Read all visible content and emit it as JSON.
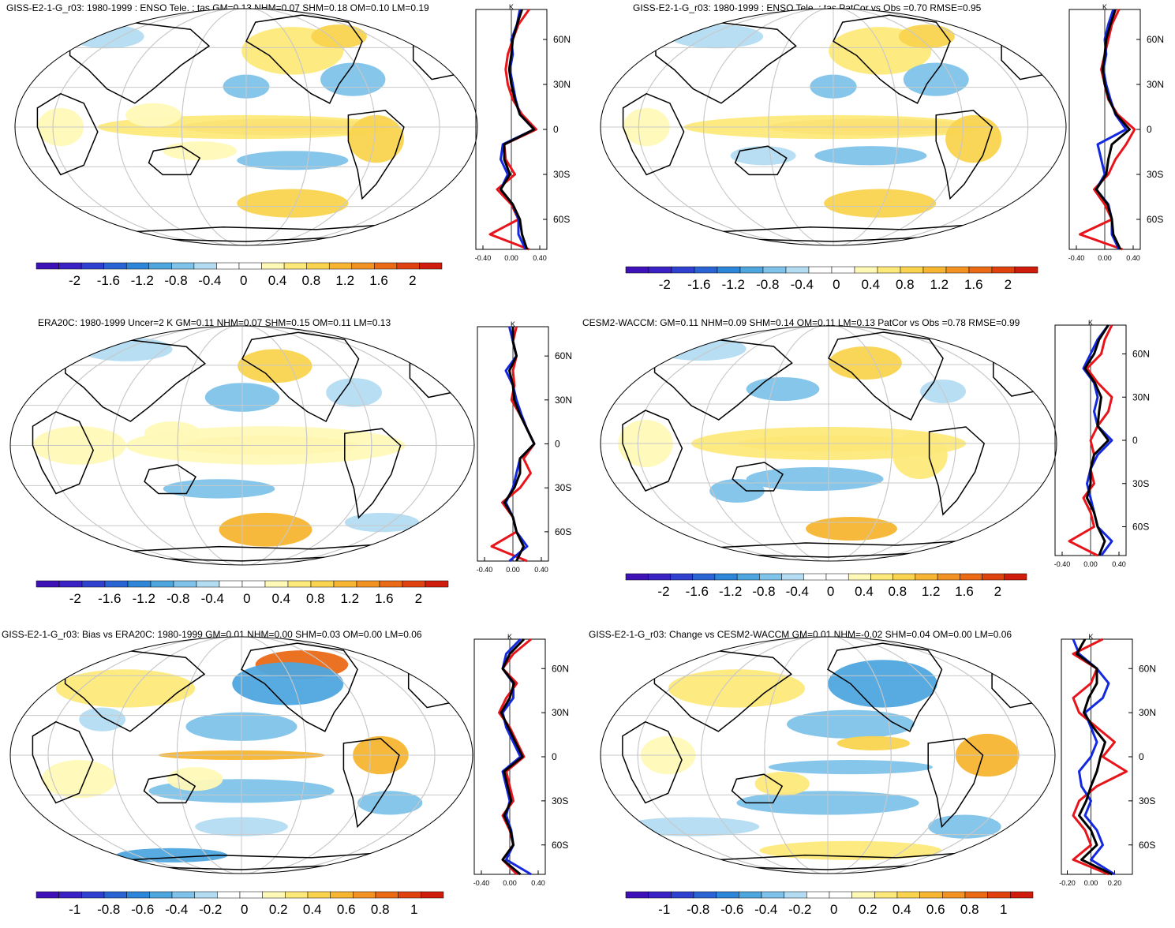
{
  "colors": {
    "model": "#e8141b",
    "obs": "#1428e0",
    "ensemble": "#000000",
    "coast": "#000000",
    "grid": "#c8c8c8",
    "warm_scale": [
      "#fff9b8",
      "#fde97a",
      "#fad44f",
      "#f7b532",
      "#f29222",
      "#ea6a16",
      "#e0420f",
      "#d01c0c"
    ],
    "cool_scale": [
      "#b3dcf2",
      "#7fc3ea",
      "#4ea6df",
      "#2e86d9",
      "#2a64d2",
      "#3040cf",
      "#3a22c4",
      "#3f12b8"
    ]
  },
  "panels": [
    {
      "title": "GISS-E2-1-G_r03: 1980-1999 : ENSO Tele. : tas GM=0.13 NHM=0.07 SHM=0.18 OM=0.10 LM=0.19",
      "profile_unit": "K",
      "lat_labels": [
        "60N",
        "30N",
        "0",
        "30S",
        "60S"
      ],
      "profile_ticks": [
        "-0.40",
        "0.00",
        "0.40"
      ],
      "colorbar_labels": [
        "-2",
        "-1.6",
        "-1.2",
        "-0.8",
        "-0.4",
        "0",
        "0.4",
        "0.8",
        "1.2",
        "1.6",
        "2"
      ]
    },
    {
      "title": "GISS-E2-1-G_r03: 1980-1999 : ENSO Tele. : tas PatCor vs Obs =0.70 RMSE=0.95",
      "profile_unit": "K",
      "lat_labels": [
        "60N",
        "30N",
        "0",
        "30S",
        "60S"
      ],
      "profile_ticks": [
        "-0.40",
        "0.00",
        "0.40"
      ],
      "colorbar_labels": [
        "-2",
        "-1.6",
        "-1.2",
        "-0.8",
        "-0.4",
        "0",
        "0.4",
        "0.8",
        "1.2",
        "1.6",
        "2"
      ]
    },
    {
      "title": "ERA20C: 1980-1999 Uncer=2 K GM=0.11 NHM=0.07 SHM=0.15 OM=0.11 LM=0.13",
      "profile_unit": "K",
      "lat_labels": [
        "60N",
        "30N",
        "0",
        "30S",
        "60S"
      ],
      "profile_ticks": [
        "-0.40",
        "0.00",
        "0.40"
      ],
      "colorbar_labels": [
        "-2",
        "-1.6",
        "-1.2",
        "-0.8",
        "-0.4",
        "0",
        "0.4",
        "0.8",
        "1.2",
        "1.6",
        "2"
      ]
    },
    {
      "title": "CESM2-WACCM: GM=0.11 NHM=0.09 SHM=0.14 OM=0.11 LM=0.13 PatCor vs Obs =0.78 RMSE=0.99",
      "profile_unit": "K",
      "lat_labels": [
        "60N",
        "30N",
        "0",
        "30S",
        "60S"
      ],
      "profile_ticks": [
        "-0.40",
        "0.00",
        "0.40"
      ],
      "colorbar_labels": [
        "-2",
        "-1.6",
        "-1.2",
        "-0.8",
        "-0.4",
        "0",
        "0.4",
        "0.8",
        "1.2",
        "1.6",
        "2"
      ]
    },
    {
      "title": "GISS-E2-1-G_r03: Bias vs ERA20C: 1980-1999 GM=0.01 NHM=0.00 SHM=0.03 OM=0.00 LM=0.06",
      "profile_unit": "K",
      "lat_labels": [
        "60N",
        "30N",
        "0",
        "30S",
        "60S"
      ],
      "profile_ticks": [
        "-0.40",
        "0.00",
        "0.40"
      ],
      "colorbar_labels": [
        "-1",
        "-0.8",
        "-0.6",
        "-0.4",
        "-0.2",
        "0",
        "0.2",
        "0.4",
        "0.6",
        "0.8",
        "1"
      ]
    },
    {
      "title": "GISS-E2-1-G_r03: Change vs CESM2-WACCM GM=0.01 NHM=-0.02 SHM=0.04 OM=0.00 LM=0.06",
      "profile_unit": "K",
      "lat_labels": [
        "60N",
        "30N",
        "0",
        "30S",
        "60S"
      ],
      "profile_ticks": [
        "-0.20",
        "0.00",
        "0.20"
      ],
      "colorbar_labels": [
        "-1",
        "-0.8",
        "-0.6",
        "-0.4",
        "-0.2",
        "0",
        "0.2",
        "0.4",
        "0.6",
        "0.8",
        "1"
      ]
    }
  ],
  "chart_data": [
    {
      "type": "heatmap",
      "title": "GISS-E2-1-G_r03: 1980-1999 : ENSO Tele. : tas GM=0.13 NHM=0.07 SHM=0.18 OM=0.10 LM=0.19",
      "colorbar_range": [
        -2,
        2
      ],
      "colorbar_ticks": [
        -2,
        -1.6,
        -1.2,
        -0.8,
        -0.4,
        0,
        0.4,
        0.8,
        1.2,
        1.6,
        2
      ],
      "profile": {
        "unit": "K",
        "xlim": [
          -0.5,
          0.5
        ],
        "lat": [
          80,
          70,
          60,
          50,
          40,
          30,
          20,
          10,
          0,
          -10,
          -20,
          -30,
          -40,
          -50,
          -60,
          -70,
          -80
        ],
        "series": [
          {
            "values": [
              0.25,
              0.1,
              0.02,
              -0.05,
              -0.08,
              -0.05,
              0.02,
              0.15,
              0.35,
              -0.1,
              -0.08,
              0.05,
              -0.2,
              0.0,
              0.1,
              -0.3,
              0.25
            ]
          },
          {
            "values": [
              0.12,
              0.08,
              0.0,
              0.02,
              -0.02,
              0.02,
              0.06,
              0.12,
              0.32,
              -0.12,
              -0.15,
              -0.05,
              -0.15,
              0.02,
              0.1,
              0.1,
              0.2
            ]
          },
          {
            "values": [
              0.15,
              0.08,
              0.02,
              0.0,
              -0.03,
              0.0,
              0.05,
              0.12,
              0.32,
              -0.1,
              -0.1,
              -0.02,
              -0.15,
              0.02,
              0.12,
              0.15,
              0.22
            ]
          }
        ]
      }
    },
    {
      "type": "heatmap",
      "title": "GISS-E2-1-G_r03: 1980-1999 : ENSO Tele. : tas PatCor vs Obs =0.70 RMSE=0.95",
      "colorbar_range": [
        -2,
        2
      ],
      "colorbar_ticks": [
        -2,
        -1.6,
        -1.2,
        -0.8,
        -0.4,
        0,
        0.4,
        0.8,
        1.2,
        1.6,
        2
      ],
      "profile": {
        "unit": "K",
        "xlim": [
          -0.5,
          0.5
        ],
        "lat": [
          80,
          70,
          60,
          50,
          40,
          30,
          20,
          10,
          0,
          -10,
          -20,
          -30,
          -40,
          -50,
          -60,
          -70,
          -80
        ],
        "series": [
          {
            "values": [
              0.2,
              0.1,
              0.05,
              0.0,
              -0.05,
              0.0,
              0.05,
              0.18,
              0.42,
              0.3,
              0.15,
              0.05,
              -0.15,
              0.0,
              0.1,
              -0.35,
              0.25
            ]
          },
          {
            "values": [
              0.12,
              0.05,
              0.0,
              0.02,
              -0.02,
              0.02,
              0.08,
              0.15,
              0.3,
              -0.1,
              -0.05,
              0.0,
              -0.12,
              0.05,
              0.1,
              0.1,
              0.2
            ]
          },
          {
            "values": [
              0.15,
              0.08,
              0.02,
              0.0,
              -0.03,
              0.0,
              0.06,
              0.16,
              0.35,
              0.1,
              0.05,
              0.02,
              -0.12,
              0.04,
              0.1,
              0.12,
              0.22
            ]
          }
        ]
      }
    },
    {
      "type": "heatmap",
      "title": "ERA20C: 1980-1999 Uncer=2 K GM=0.11 NHM=0.07 SHM=0.15 OM=0.11 LM=0.13",
      "colorbar_range": [
        -2,
        2
      ],
      "colorbar_ticks": [
        -2,
        -1.6,
        -1.2,
        -0.8,
        -0.4,
        0,
        0.4,
        0.8,
        1.2,
        1.6,
        2
      ],
      "profile": {
        "unit": "K",
        "xlim": [
          -0.5,
          0.5
        ],
        "lat": [
          80,
          70,
          60,
          50,
          40,
          30,
          20,
          10,
          0,
          -10,
          -20,
          -30,
          -40,
          -50,
          -60,
          -70,
          -80
        ],
        "series": [
          {
            "values": [
              0.05,
              0.0,
              0.05,
              0.0,
              0.02,
              -0.02,
              0.1,
              0.2,
              0.3,
              0.15,
              0.25,
              0.1,
              -0.15,
              0.0,
              0.05,
              -0.3,
              0.2
            ]
          },
          {
            "values": [
              -0.05,
              0.0,
              0.05,
              -0.1,
              0.0,
              0.05,
              0.12,
              0.2,
              0.3,
              0.1,
              0.05,
              0.0,
              -0.1,
              0.0,
              0.05,
              0.2,
              -0.05
            ]
          },
          {
            "values": [
              0.0,
              0.0,
              0.05,
              -0.05,
              0.0,
              0.02,
              0.1,
              0.2,
              0.3,
              0.1,
              0.1,
              0.02,
              -0.12,
              0.0,
              0.05,
              0.15,
              0.05
            ]
          }
        ]
      }
    },
    {
      "type": "heatmap",
      "title": "CESM2-WACCM: GM=0.11 NHM=0.09 SHM=0.14 OM=0.11 LM=0.13 PatCor vs Obs =0.78 RMSE=0.99",
      "colorbar_range": [
        -2,
        2
      ],
      "colorbar_ticks": [
        -2,
        -1.6,
        -1.2,
        -0.8,
        -0.4,
        0,
        0.4,
        0.8,
        1.2,
        1.6,
        2
      ],
      "profile": {
        "unit": "K",
        "xlim": [
          -0.5,
          0.5
        ],
        "lat": [
          80,
          70,
          60,
          50,
          40,
          30,
          20,
          10,
          0,
          -10,
          -20,
          -30,
          -40,
          -50,
          -60,
          -70,
          -80
        ],
        "series": [
          {
            "values": [
              0.3,
              0.2,
              0.15,
              -0.05,
              0.1,
              0.3,
              0.25,
              0.1,
              0.0,
              0.05,
              0.0,
              0.05,
              -0.1,
              0.0,
              0.05,
              -0.3,
              0.1
            ]
          },
          {
            "values": [
              0.25,
              0.1,
              0.0,
              -0.1,
              0.05,
              0.1,
              0.05,
              0.1,
              0.3,
              0.1,
              0.0,
              -0.05,
              0.0,
              0.05,
              0.1,
              0.3,
              0.15
            ]
          },
          {
            "values": [
              0.25,
              0.12,
              0.05,
              -0.08,
              0.06,
              0.15,
              0.12,
              0.1,
              0.25,
              0.05,
              0.0,
              0.0,
              -0.05,
              0.05,
              0.1,
              0.2,
              0.12
            ]
          }
        ]
      }
    },
    {
      "type": "heatmap",
      "title": "GISS-E2-1-G_r03: Bias vs ERA20C: 1980-1999 GM=0.01 NHM=0.00 SHM=0.03 OM=0.00 LM=0.06",
      "colorbar_range": [
        -1,
        1
      ],
      "colorbar_ticks": [
        -1,
        -0.8,
        -0.6,
        -0.4,
        -0.2,
        0,
        0.2,
        0.4,
        0.6,
        0.8,
        1
      ],
      "profile": {
        "unit": "K",
        "xlim": [
          -0.5,
          0.5
        ],
        "lat": [
          80,
          70,
          60,
          50,
          40,
          30,
          20,
          10,
          0,
          -10,
          -20,
          -30,
          -40,
          -50,
          -60,
          -70,
          -80
        ],
        "series": [
          {
            "values": [
              0.3,
              0.05,
              -0.1,
              0.1,
              -0.05,
              -0.15,
              0.0,
              0.1,
              0.2,
              -0.05,
              0.0,
              0.05,
              -0.1,
              0.0,
              0.05,
              -0.1,
              0.1
            ]
          },
          {
            "values": [
              0.15,
              -0.05,
              -0.1,
              0.05,
              0.05,
              -0.1,
              -0.05,
              0.05,
              0.15,
              -0.1,
              -0.05,
              0.0,
              -0.05,
              0.02,
              0.05,
              -0.05,
              0.3
            ]
          },
          {
            "values": [
              0.2,
              0.0,
              -0.1,
              0.06,
              0.0,
              -0.12,
              -0.02,
              0.08,
              0.18,
              -0.08,
              -0.03,
              0.02,
              -0.08,
              0.01,
              0.05,
              -0.1,
              0.15
            ]
          }
        ]
      }
    },
    {
      "type": "heatmap",
      "title": "GISS-E2-1-G_r03: Change vs CESM2-WACCM GM=0.01 NHM=-0.02 SHM=0.04 OM=0.00 LM=0.06",
      "colorbar_range": [
        -1,
        1
      ],
      "colorbar_ticks": [
        -1,
        -0.8,
        -0.6,
        -0.4,
        -0.2,
        0,
        0.2,
        0.4,
        0.6,
        0.8,
        1
      ],
      "profile": {
        "unit": "K",
        "xlim": [
          -0.25,
          0.35
        ],
        "lat": [
          80,
          70,
          60,
          50,
          40,
          30,
          20,
          10,
          0,
          -10,
          -20,
          -30,
          -40,
          -50,
          -60,
          -70,
          -80
        ],
        "series": [
          {
            "values": [
              0.1,
              -0.15,
              0.05,
              0.0,
              -0.15,
              -0.1,
              0.05,
              0.2,
              0.1,
              0.3,
              0.05,
              -0.1,
              -0.15,
              -0.05,
              0.0,
              -0.15,
              0.15
            ]
          },
          {
            "values": [
              -0.15,
              -0.1,
              0.05,
              0.15,
              0.1,
              -0.05,
              0.0,
              0.05,
              0.0,
              -0.1,
              -0.08,
              0.0,
              -0.05,
              0.05,
              0.1,
              0.0,
              0.2
            ]
          },
          {
            "values": [
              -0.05,
              -0.12,
              0.05,
              0.05,
              -0.02,
              -0.06,
              0.02,
              0.12,
              0.08,
              0.05,
              0.0,
              -0.04,
              -0.1,
              0.0,
              0.05,
              -0.08,
              0.18
            ]
          }
        ]
      }
    }
  ]
}
